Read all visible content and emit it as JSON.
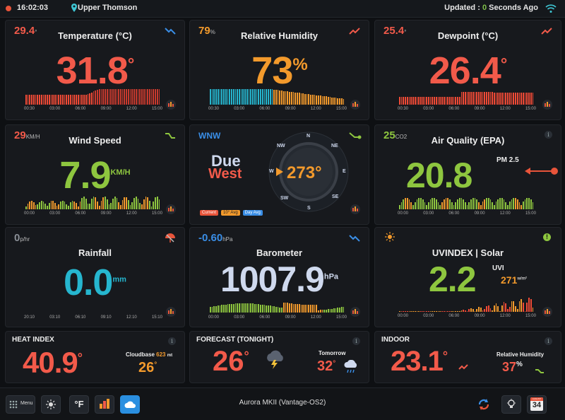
{
  "topbar": {
    "time": "16:02:03",
    "location": "Upper Thomson",
    "updated_prefix": "Updated : ",
    "updated_num": "0",
    "updated_suffix": " Seconds Ago"
  },
  "temperature": {
    "mini": "29.4",
    "mini_unit": "°",
    "title": "Temperature (°C)",
    "value": "31.8",
    "unit": "°",
    "axis": [
      "00:30",
      "03:00",
      "06:00",
      "09:00",
      "12:00",
      "15:00"
    ]
  },
  "humidity": {
    "mini": "79",
    "mini_unit": "%",
    "title": "Relative Humidity",
    "value": "73",
    "unit": "%",
    "axis": [
      "00:30",
      "03:00",
      "06:00",
      "09:00",
      "12:00",
      "15:00"
    ]
  },
  "dewpoint": {
    "mini": "25.4",
    "mini_unit": "°",
    "title": "Dewpoint (°C)",
    "value": "26.4",
    "unit": "°",
    "axis": [
      "00:30",
      "03:00",
      "06:00",
      "09:00",
      "12:00",
      "15:00"
    ]
  },
  "wind": {
    "mini": "29",
    "mini_unit": "KM/H",
    "title": "Wind Speed",
    "value": "7.9",
    "unit": "KM/H",
    "axis": [
      "00:00",
      "03:00",
      "06:00",
      "09:00",
      "12:00",
      "15:00"
    ]
  },
  "direction": {
    "label": "WNW",
    "line1": "Due",
    "line2": "West",
    "degrees": "273°",
    "compass": [
      "N",
      "NE",
      "E",
      "SE",
      "S",
      "SW",
      "W",
      "NW"
    ],
    "legend": [
      "Current",
      "10° Avg",
      "Day Avg"
    ]
  },
  "air": {
    "mini": "25",
    "mini_unit": "CO2",
    "title": "Air Quality (EPA)",
    "value": "20.8",
    "unit": "PM 2.5",
    "axis": [
      "00:00",
      "03:00",
      "06:00",
      "09:00",
      "12:00",
      "15:00"
    ]
  },
  "rain": {
    "mini": "0",
    "mini_unit": "p/hr",
    "title": "Rainfall",
    "value": "0.0",
    "unit": "mm",
    "axis": [
      "20:10",
      "03:10",
      "06:10",
      "09:10",
      "12:10",
      "15:10"
    ]
  },
  "barometer": {
    "mini": "-0.60",
    "mini_unit": "hPa",
    "title": "Barometer",
    "value": "1007.9",
    "unit": "hPa",
    "axis": [
      "00:00",
      "03:00",
      "06:00",
      "09:00",
      "12:00",
      "15:00"
    ]
  },
  "uv": {
    "title": "UVINDEX | Solar",
    "value": "2.2",
    "unit": "UVI",
    "solar": "271",
    "solar_unit": "w/m²",
    "axis": [
      "00:00",
      "03:00",
      "06:00",
      "09:00",
      "12:00",
      "15:00"
    ]
  },
  "heat": {
    "title": "HEAT INDEX",
    "value": "40.9",
    "unit": "°",
    "cloud_label": "Cloudbase",
    "cloud_value": "623",
    "cloud_unit": "mt",
    "sub_value": "26",
    "sub_unit": "°"
  },
  "forecast": {
    "title": "FORECAST (TONIGHT)",
    "value": "26",
    "unit": "°",
    "tomorrow_label": "Tomorrow",
    "tomorrow_value": "32",
    "tomorrow_unit": "°"
  },
  "indoor": {
    "title": "INDOOR",
    "value": "23.1",
    "unit": "°",
    "rh_label": "Relative Humidity",
    "rh_value": "37",
    "rh_unit": "%"
  },
  "bottombar": {
    "menu": "Menu",
    "unit_btn": "°F",
    "station": "Aurora MKII (Vantage-OS2)",
    "calendar_month": "AUGUST",
    "calendar_day": "34"
  },
  "colors": {
    "red": "#f25a4a",
    "orange": "#f39a2c",
    "green": "#8ec63f",
    "cyan": "#26b6cf",
    "light": "#cfd9ee"
  }
}
